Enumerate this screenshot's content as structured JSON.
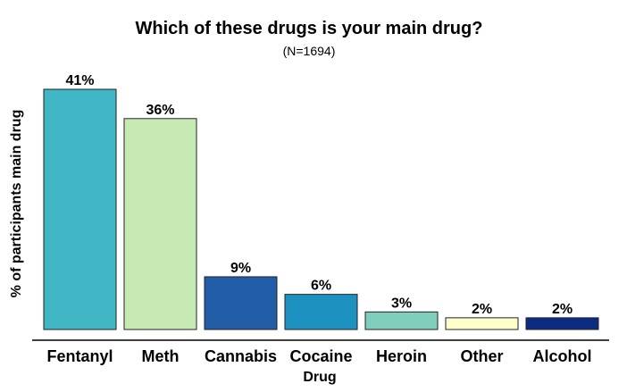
{
  "chart_data": {
    "type": "bar",
    "title": "Which of these drugs is your main drug?",
    "subtitle": "(N=1694)",
    "xlabel": "Drug",
    "ylabel": "% of participants main drug",
    "categories": [
      "Fentanyl",
      "Meth",
      "Cannabis",
      "Cocaine",
      "Heroin",
      "Other",
      "Alcohol"
    ],
    "values": [
      41,
      36,
      9,
      6,
      3,
      2,
      2
    ],
    "data_labels": [
      "41%",
      "36%",
      "9%",
      "6%",
      "3%",
      "2%",
      "2%"
    ],
    "colors": [
      "#41b6c4",
      "#c7e9b4",
      "#225ea8",
      "#1d91c0",
      "#7fcdbb",
      "#ffffcc",
      "#0c2c84"
    ],
    "ylim": [
      0,
      41
    ],
    "grid": false,
    "legend": "none"
  }
}
